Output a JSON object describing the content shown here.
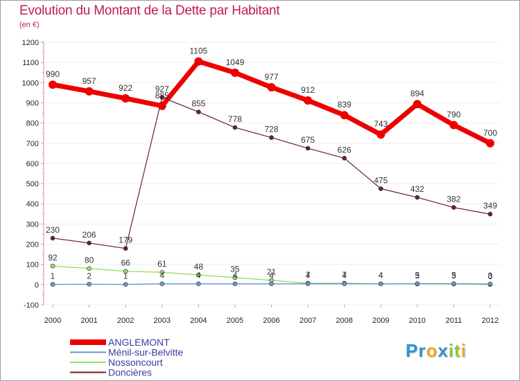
{
  "header": {
    "title": "Evolution du Montant de la Dette par Habitant",
    "unit": "(en €)"
  },
  "logo": {
    "parts": [
      "Pr",
      "o",
      "x",
      "it",
      "i"
    ],
    "colors": [
      "#2a93d5",
      "#f5a623",
      "#2a93d5",
      "#8dc63f",
      "#f5a623"
    ]
  },
  "chart_data": {
    "type": "line",
    "title": "Evolution du Montant de la Dette par Habitant",
    "subtitle": "(en €)",
    "xlabel": "",
    "ylabel": "",
    "ylim": [
      -100,
      1200
    ],
    "yticks": [
      -100,
      0,
      100,
      200,
      300,
      400,
      500,
      600,
      700,
      800,
      900,
      1000,
      1100,
      1200
    ],
    "grid": true,
    "legend_position": "bottom-left",
    "categories": [
      "2000",
      "2001",
      "2002",
      "2003",
      "2004",
      "2005",
      "2006",
      "2007",
      "2008",
      "2009",
      "2010",
      "2011",
      "2012"
    ],
    "series": [
      {
        "name": "Doncières",
        "color": "#6b1f2a",
        "values": [
          230,
          206,
          179,
          927,
          855,
          778,
          728,
          675,
          626,
          475,
          432,
          382,
          349
        ],
        "labels": [
          "230",
          "206",
          "179",
          "927",
          "855",
          "778",
          "728",
          "675",
          "626",
          "475",
          "432",
          "382",
          "349"
        ]
      },
      {
        "name": "Nossoncourt",
        "color": "#99dd66",
        "values": [
          92,
          80,
          66,
          61,
          48,
          35,
          21,
          7,
          7,
          4,
          3,
          3,
          0
        ],
        "labels": [
          "92",
          "80",
          "66",
          "61",
          "48",
          "35",
          "21",
          "7",
          "7",
          "4",
          "3",
          "3",
          "0"
        ]
      },
      {
        "name": "Ménil-sur-Belvitte",
        "color": "#6699cc",
        "values": [
          1,
          2,
          1,
          4,
          4,
          4,
          4,
          4,
          4,
          4,
          5,
          5,
          3
        ],
        "labels": [
          "1",
          "2",
          "1",
          "4",
          "4",
          "4",
          "4",
          "4",
          "4",
          "4",
          "5",
          "5",
          "3"
        ]
      },
      {
        "name": "ANGLEMONT",
        "color": "#ee0000",
        "values": [
          990,
          957,
          922,
          885,
          1105,
          1049,
          977,
          912,
          839,
          743,
          894,
          790,
          700
        ],
        "labels": [
          "990",
          "957",
          "922",
          "885",
          "1105",
          "1049",
          "977",
          "912",
          "839",
          "743",
          "894",
          "790",
          "700"
        ]
      }
    ],
    "legend": [
      "ANGLEMONT",
      "Ménil-sur-Belvitte",
      "Nossoncourt",
      "Doncières"
    ]
  }
}
